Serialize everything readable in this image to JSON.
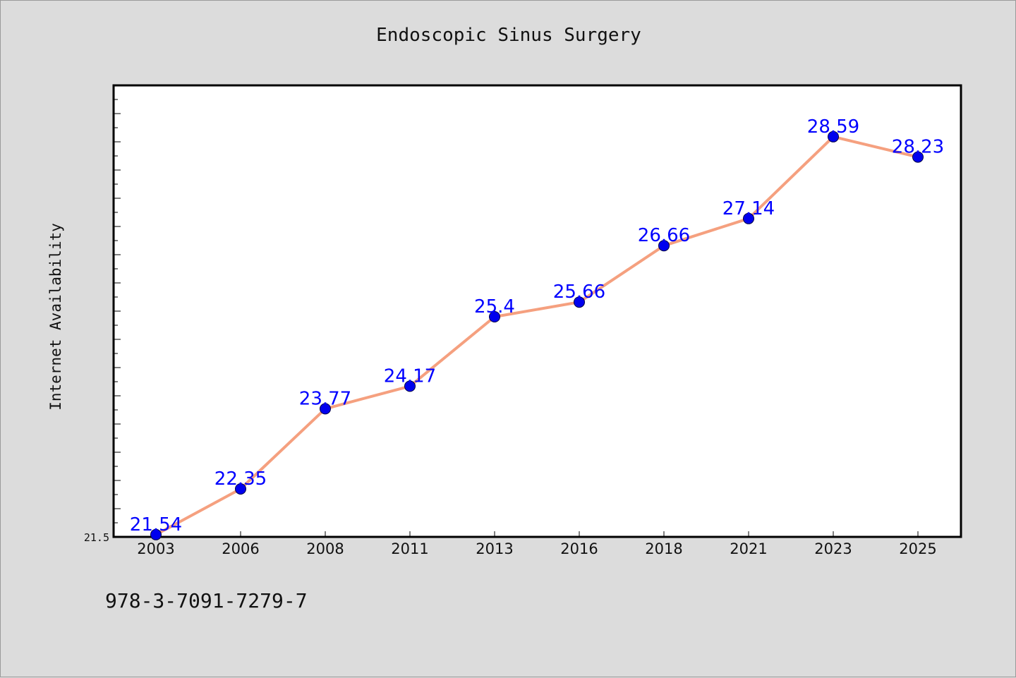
{
  "chart_data": {
    "type": "line",
    "title": "Endoscopic Sinus Surgery",
    "xlabel": "",
    "ylabel": "Internet Availability",
    "categories": [
      "2003",
      "2006",
      "2008",
      "2011",
      "2013",
      "2016",
      "2018",
      "2021",
      "2023",
      "2025"
    ],
    "values": [
      21.54,
      22.35,
      23.77,
      24.17,
      25.4,
      25.66,
      26.66,
      27.14,
      28.59,
      28.23
    ],
    "ylim": [
      21.5,
      29.5
    ],
    "y_tick_labels": [
      "21.5"
    ],
    "grid": false,
    "legend": "none",
    "data_labels": true,
    "colors": {
      "line": "#f5a07f",
      "marker": "#0000ee",
      "label": "#0000ff"
    }
  },
  "footer": {
    "code": "978-3-7091-7279-7"
  }
}
